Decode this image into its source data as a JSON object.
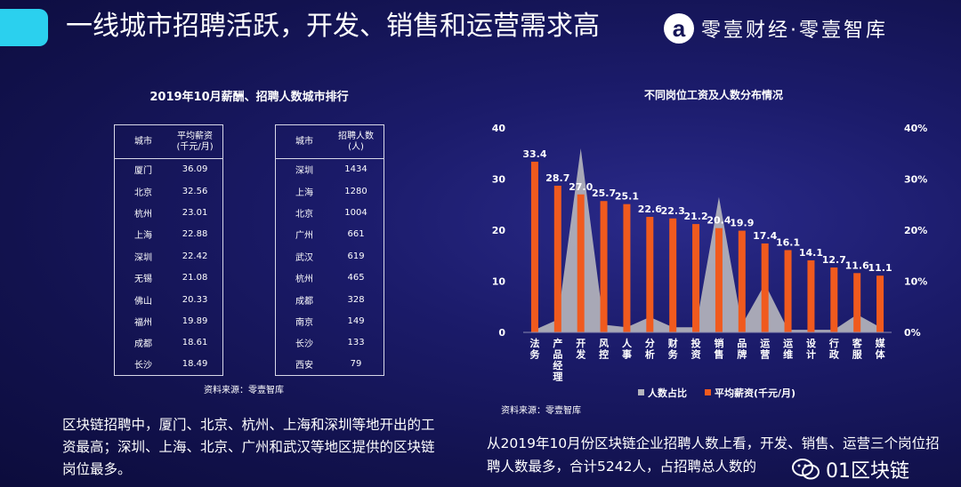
{
  "header": {
    "title": "一线城市招聘活跃，开发、销售和运营需求高",
    "brand_logo": "a",
    "brand_name": "零壹财经·零壹智库"
  },
  "left": {
    "title": "2019年10月薪酬、招聘人数城市排行",
    "salary_table": {
      "headers": [
        "城市",
        "平均薪资\n(千元/月)"
      ],
      "rows": [
        [
          "厦门",
          "36.09"
        ],
        [
          "北京",
          "32.56"
        ],
        [
          "杭州",
          "23.01"
        ],
        [
          "上海",
          "22.88"
        ],
        [
          "深圳",
          "22.42"
        ],
        [
          "无锡",
          "21.08"
        ],
        [
          "佛山",
          "20.33"
        ],
        [
          "福州",
          "19.89"
        ],
        [
          "成都",
          "18.61"
        ],
        [
          "长沙",
          "18.49"
        ]
      ]
    },
    "hiring_table": {
      "headers": [
        "城市",
        "招聘人数\n(人)"
      ],
      "rows": [
        [
          "深圳",
          "1434"
        ],
        [
          "上海",
          "1280"
        ],
        [
          "北京",
          "1004"
        ],
        [
          "广州",
          "661"
        ],
        [
          "武汉",
          "619"
        ],
        [
          "杭州",
          "465"
        ],
        [
          "成都",
          "328"
        ],
        [
          "南京",
          "149"
        ],
        [
          "长沙",
          "133"
        ],
        [
          "西安",
          "79"
        ]
      ]
    },
    "source": "资料来源：零壹智库",
    "description": "区块链招聘中，厦门、北京、杭州、上海和深圳等地开出的工资最高；深圳、上海、北京、广州和武汉等地区提供的区块链岗位最多。"
  },
  "right": {
    "source": "资料来源：零壹智库",
    "description": "从2019年10月份区块链企业招聘人数上看，开发、销售、运营三个岗位招聘人数最多，合计5242人，占招聘总人数的",
    "watermark": "01区块链"
  },
  "chart_data": {
    "type": "bar",
    "title": "不同岗位工资及人数分布情况",
    "categories": [
      "法务",
      "产品经理",
      "开发",
      "风控",
      "人事",
      "分析",
      "财务",
      "投资",
      "销售",
      "品牌",
      "运营",
      "运维",
      "设计",
      "行政",
      "客服",
      "媒体"
    ],
    "y_left": {
      "lim": [
        0,
        40
      ],
      "ticks": [
        "0",
        "10",
        "20",
        "30",
        "40"
      ]
    },
    "y_right": {
      "lim": [
        0,
        0.4
      ],
      "ticks": [
        "0%",
        "10%",
        "20%",
        "30%",
        "40%"
      ]
    },
    "series": [
      {
        "name": "人数占比",
        "kind": "area",
        "axis": "right",
        "color": "#b4b4bc",
        "values": [
          0.005,
          0.025,
          0.36,
          0.015,
          0.01,
          0.03,
          0.01,
          0.01,
          0.265,
          0.015,
          0.095,
          0.005,
          0.005,
          0.005,
          0.035,
          0.01
        ]
      },
      {
        "name": "平均薪资(千元/月)",
        "kind": "bar",
        "axis": "left",
        "color": "#f05a1e",
        "values": [
          33.4,
          28.7,
          27.0,
          25.7,
          25.1,
          22.6,
          22.3,
          21.2,
          20.4,
          19.9,
          17.4,
          16.1,
          14.1,
          12.7,
          11.6,
          11.1
        ],
        "labels": [
          "33.4",
          "28.7",
          "27.0",
          "25.7",
          "25.1",
          "22.6",
          "22.3",
          "21.2",
          "20.4",
          "19.9",
          "17.4",
          "16.1",
          "14.1",
          "12.7",
          "11.6",
          "11.1"
        ]
      }
    ],
    "legend": "bottom"
  }
}
